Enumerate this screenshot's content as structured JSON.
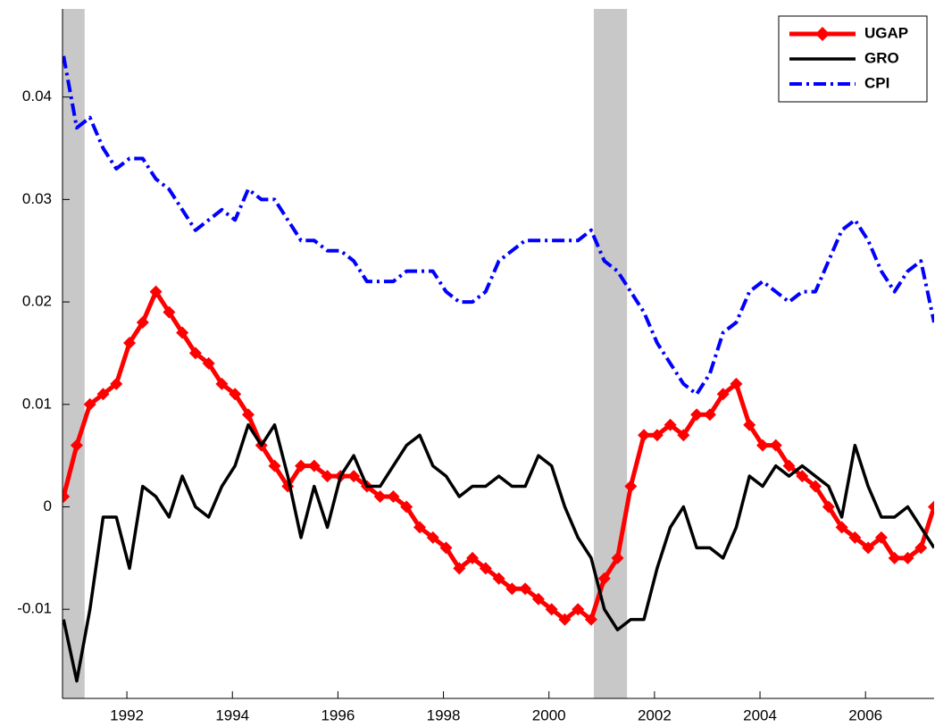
{
  "chart_data": {
    "type": "line",
    "x": [
      1990.8,
      1991.05,
      1991.3,
      1991.55,
      1991.8,
      1992.05,
      1992.3,
      1992.55,
      1992.8,
      1993.05,
      1993.3,
      1993.55,
      1993.8,
      1994.05,
      1994.3,
      1994.55,
      1994.8,
      1995.05,
      1995.3,
      1995.55,
      1995.8,
      1996.05,
      1996.3,
      1996.55,
      1996.8,
      1997.05,
      1997.3,
      1997.55,
      1997.8,
      1998.05,
      1998.3,
      1998.55,
      1998.8,
      1999.05,
      1999.3,
      1999.55,
      1999.8,
      2000.05,
      2000.3,
      2000.55,
      2000.8,
      2001.05,
      2001.3,
      2001.55,
      2001.8,
      2002.05,
      2002.3,
      2002.55,
      2002.8,
      2003.05,
      2003.3,
      2003.55,
      2003.8,
      2004.05,
      2004.3,
      2004.55,
      2004.8,
      2005.05,
      2005.3,
      2005.55,
      2005.8,
      2006.05,
      2006.3,
      2006.55,
      2006.8,
      2007.05,
      2007.3
    ],
    "series": [
      {
        "name": "UGAP",
        "color": "#ff0000",
        "style": "solid",
        "marker": "diamond",
        "width": 5,
        "values": [
          0.001,
          0.006,
          0.01,
          0.011,
          0.012,
          0.016,
          0.018,
          0.021,
          0.019,
          0.017,
          0.015,
          0.014,
          0.012,
          0.011,
          0.009,
          0.006,
          0.004,
          0.002,
          0.004,
          0.004,
          0.003,
          0.003,
          0.003,
          0.002,
          0.001,
          0.001,
          0.0,
          -0.002,
          -0.003,
          -0.004,
          -0.006,
          -0.005,
          -0.006,
          -0.007,
          -0.008,
          -0.008,
          -0.009,
          -0.01,
          -0.011,
          -0.01,
          -0.011,
          -0.007,
          -0.005,
          0.002,
          0.007,
          0.007,
          0.008,
          0.007,
          0.009,
          0.009,
          0.011,
          0.012,
          0.008,
          0.006,
          0.006,
          0.004,
          0.003,
          0.002,
          0.0,
          -0.002,
          -0.003,
          -0.004,
          -0.003,
          -0.005,
          -0.005,
          -0.004,
          0.0
        ]
      },
      {
        "name": "GRO",
        "color": "#000000",
        "style": "solid",
        "width": 3.5,
        "values": [
          -0.011,
          -0.017,
          -0.01,
          -0.001,
          -0.001,
          -0.006,
          0.002,
          0.001,
          -0.001,
          0.003,
          0.0,
          -0.001,
          0.002,
          0.004,
          0.008,
          0.006,
          0.008,
          0.003,
          -0.003,
          0.002,
          -0.002,
          0.003,
          0.005,
          0.002,
          0.002,
          0.004,
          0.006,
          0.007,
          0.004,
          0.003,
          0.001,
          0.002,
          0.002,
          0.003,
          0.002,
          0.002,
          0.005,
          0.004,
          0.0,
          -0.003,
          -0.005,
          -0.01,
          -0.012,
          -0.011,
          -0.011,
          -0.006,
          -0.002,
          0.0,
          -0.004,
          -0.004,
          -0.005,
          -0.002,
          0.003,
          0.002,
          0.004,
          0.003,
          0.004,
          0.003,
          0.002,
          -0.001,
          0.006,
          0.002,
          -0.001,
          -0.001,
          0.0,
          -0.002,
          -0.004
        ]
      },
      {
        "name": "CPI",
        "color": "#0000ff",
        "style": "dashdot",
        "width": 4,
        "values": [
          0.044,
          0.037,
          0.038,
          0.035,
          0.033,
          0.034,
          0.034,
          0.032,
          0.031,
          0.029,
          0.027,
          0.028,
          0.029,
          0.028,
          0.031,
          0.03,
          0.03,
          0.028,
          0.026,
          0.026,
          0.025,
          0.025,
          0.024,
          0.022,
          0.022,
          0.022,
          0.023,
          0.023,
          0.023,
          0.021,
          0.02,
          0.02,
          0.021,
          0.024,
          0.025,
          0.026,
          0.026,
          0.026,
          0.026,
          0.026,
          0.027,
          0.024,
          0.023,
          0.021,
          0.019,
          0.016,
          0.014,
          0.012,
          0.011,
          0.013,
          0.017,
          0.018,
          0.021,
          0.022,
          0.021,
          0.02,
          0.021,
          0.021,
          0.024,
          0.027,
          0.028,
          0.026,
          0.023,
          0.021,
          0.023,
          0.024,
          0.018
        ]
      }
    ],
    "shaded_regions": [
      [
        1990.78,
        1991.2
      ],
      [
        2000.85,
        2001.48
      ]
    ],
    "shade_color": "#c8c8c8",
    "xlim": [
      1990.78,
      2007.3
    ],
    "xticks": [
      1992,
      1994,
      1996,
      1998,
      2000,
      2002,
      2004,
      2006
    ],
    "ylim": [
      -0.0187,
      0.0486
    ],
    "yticks": [
      -0.01,
      0,
      0.01,
      0.02,
      0.03,
      0.04
    ],
    "legend": "upper right"
  }
}
